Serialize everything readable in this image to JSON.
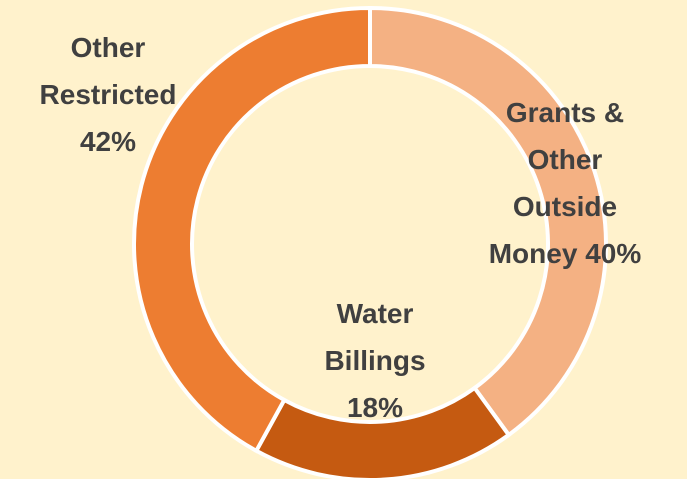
{
  "chart_data": {
    "type": "donut",
    "categories": [
      "Grants & Other Outside Money",
      "Water Billings",
      "Other Restricted"
    ],
    "values": [
      40,
      18,
      42
    ],
    "value_labels": [
      "40%",
      "18%",
      "42%"
    ],
    "colors": [
      "#f4b183",
      "#c55a11",
      "#ed7d31"
    ]
  }
}
